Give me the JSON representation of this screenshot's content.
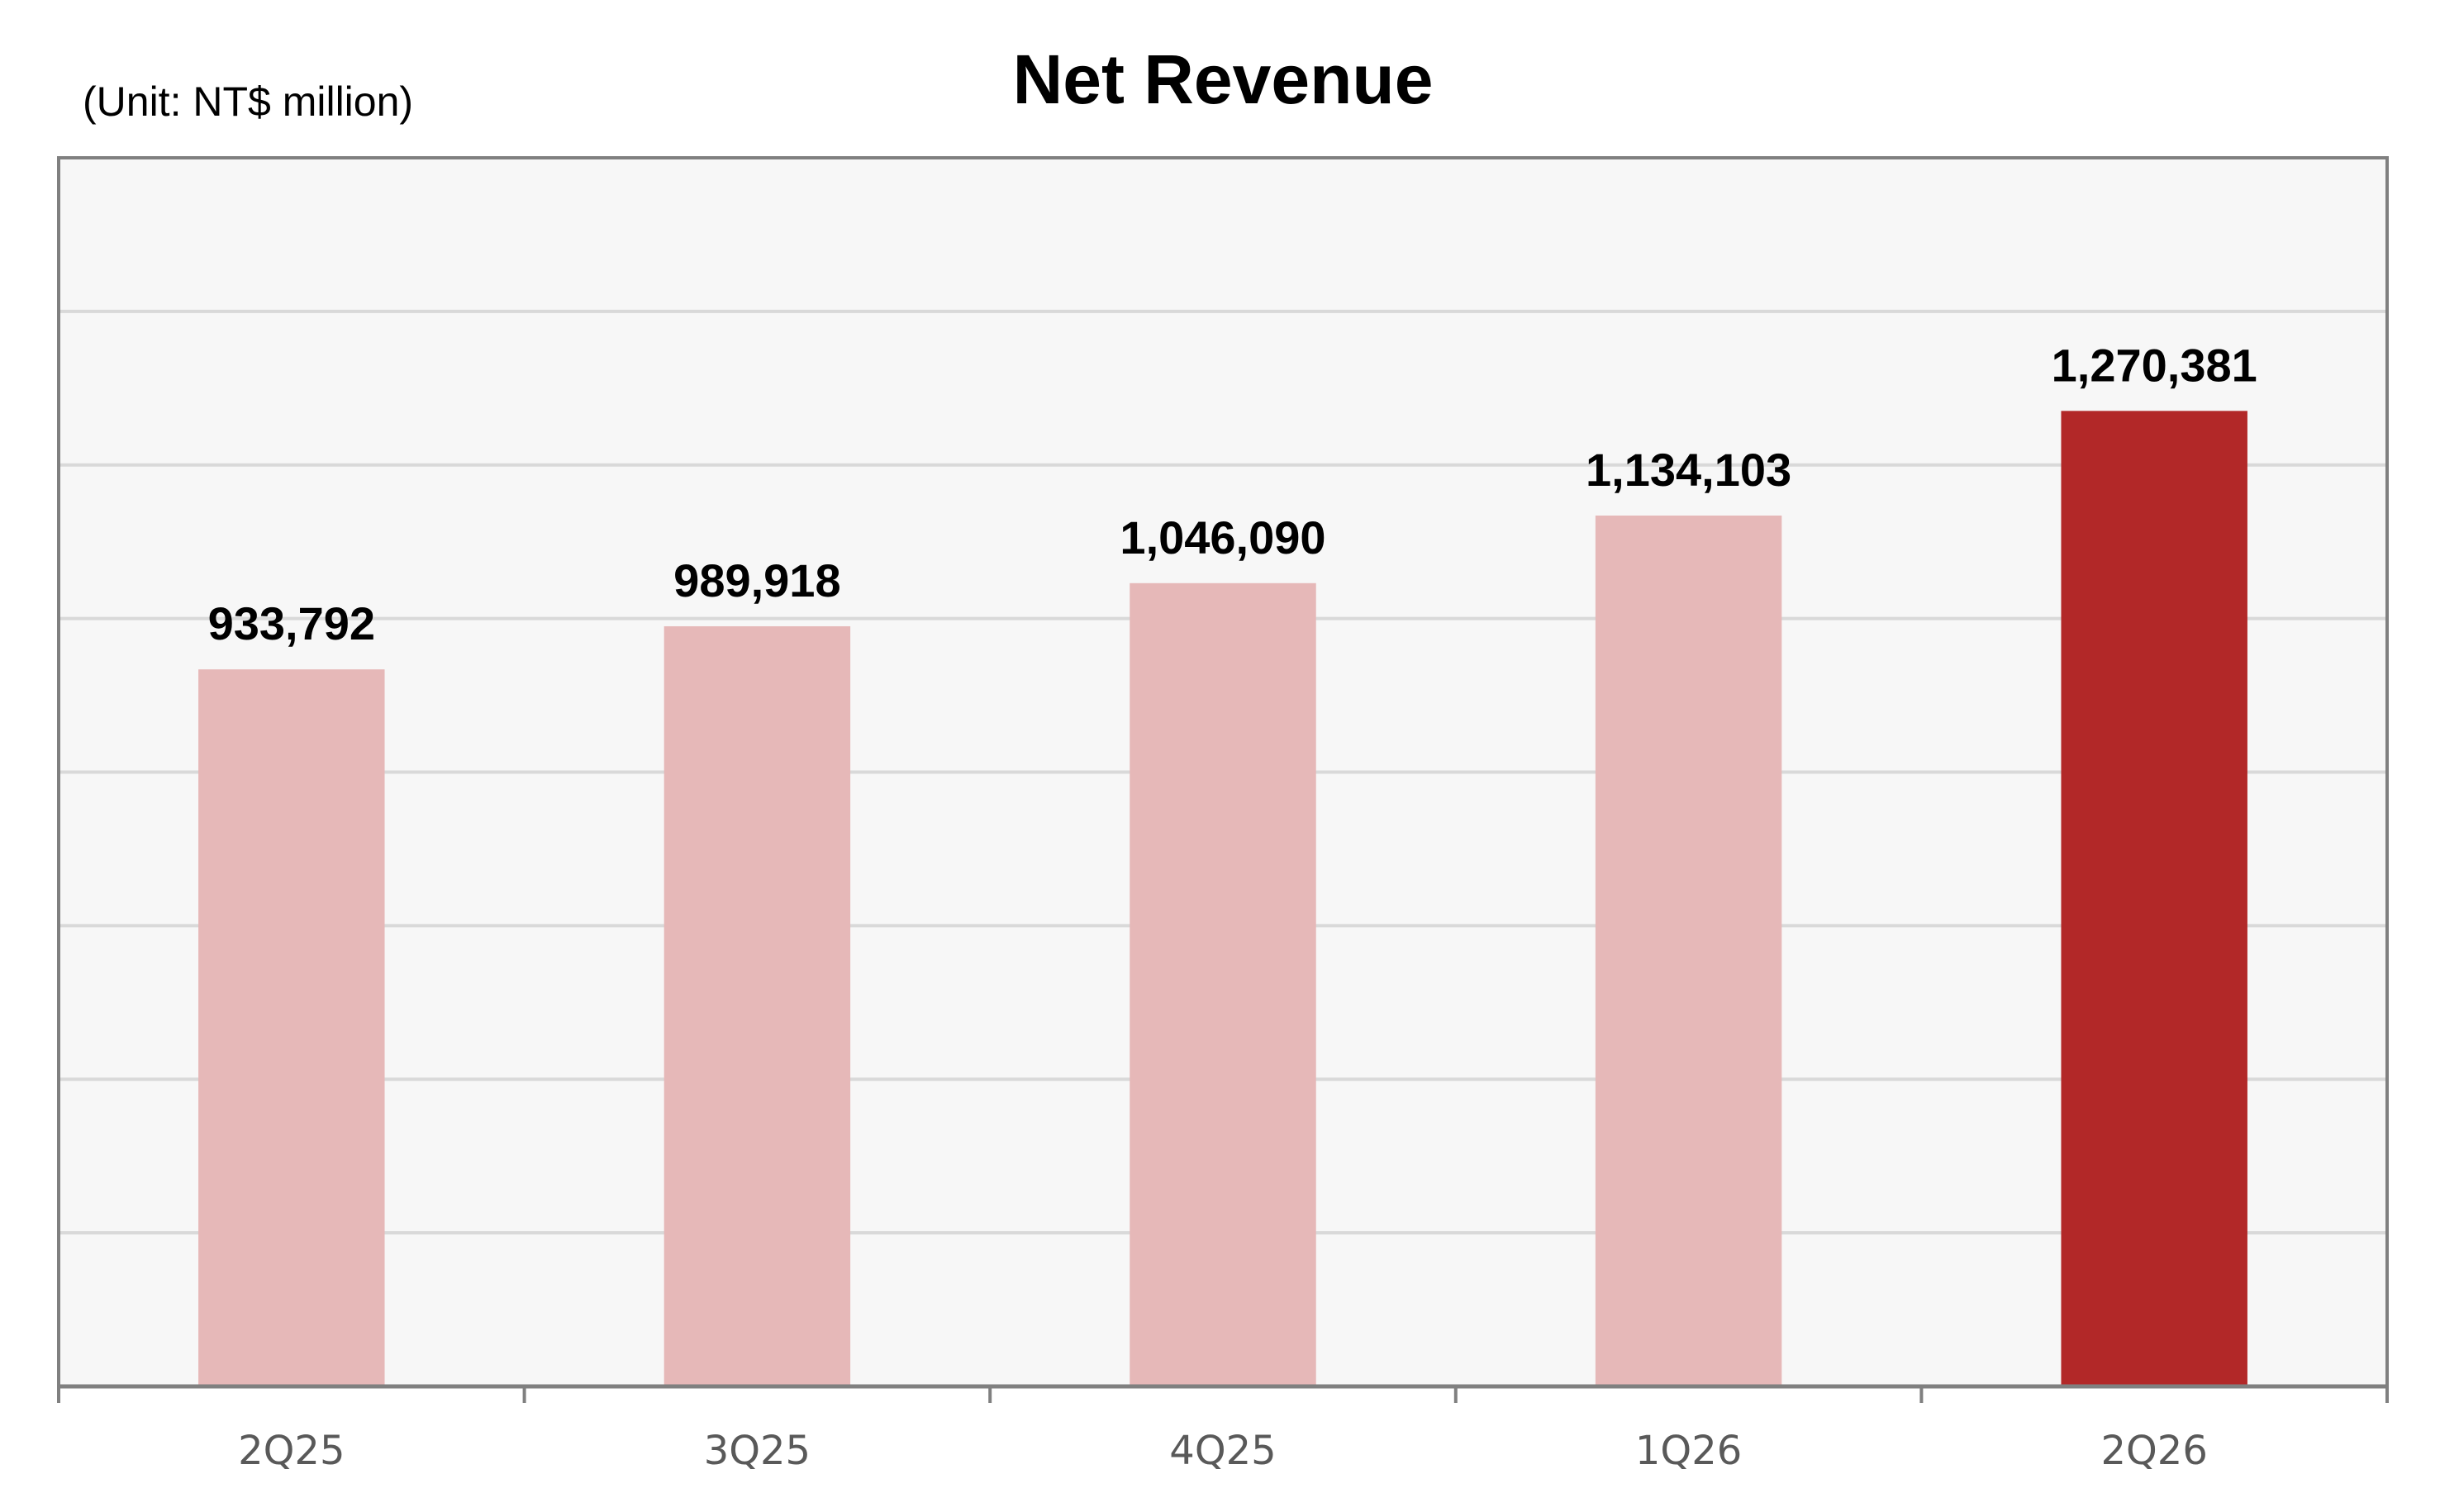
{
  "chart_data": {
    "type": "bar",
    "title": "Net Revenue",
    "unit_note": "(Unit: NT$ million)",
    "xlabel": "",
    "ylabel": "",
    "categories": [
      "2Q25",
      "3Q25",
      "4Q25",
      "1Q26",
      "2Q26"
    ],
    "values": [
      933792,
      989918,
      1046090,
      1134103,
      1270381
    ],
    "value_labels": [
      "933,792",
      "989,918",
      "1,046,090",
      "1,134,103",
      "1,270,381"
    ],
    "ylim": [
      0,
      1600000
    ],
    "y_gridline_step": 200000,
    "y_tick_labels_shown": false,
    "grid": true,
    "legend": "none",
    "highlight_index": 4,
    "colors": {
      "bar": "#E6B8B8",
      "bar_highlight": "#B22828",
      "plot_background": "#F7F7F7",
      "gridline": "#D9D9D9",
      "frame": "#808080",
      "title": "#000000",
      "value_label": "#000000",
      "tick_label": "#595959"
    }
  }
}
